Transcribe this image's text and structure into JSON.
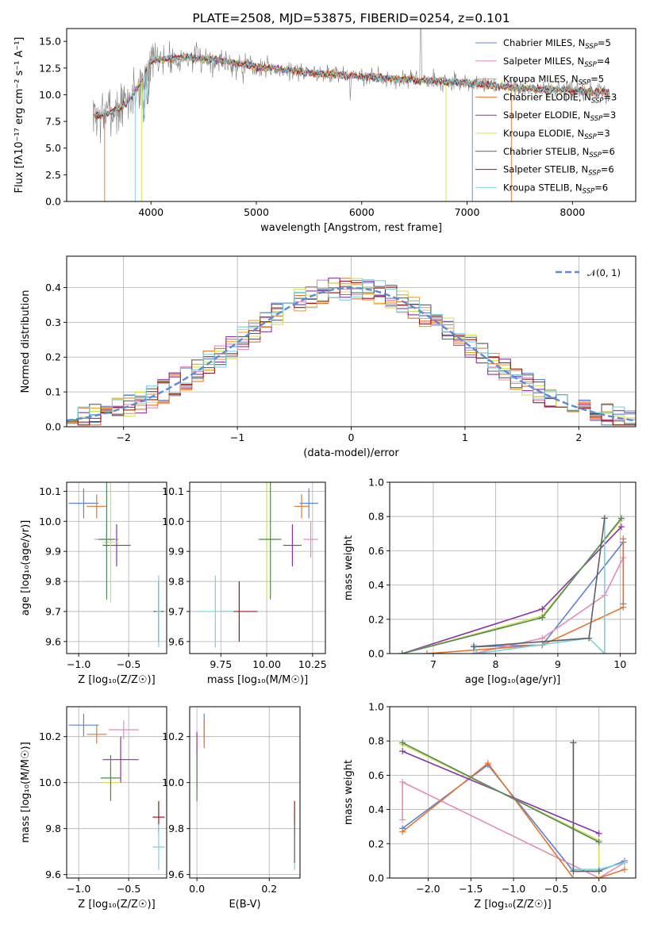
{
  "colors": {
    "chabrier_miles": "#5b84d4",
    "salpeter_miles": "#e88ab8",
    "kroupa_miles": "#f0a020",
    "chabrier_elodie": "#e8742c",
    "salpeter_elodie": "#8a32a8",
    "kroupa_elodie": "#d6e04a",
    "chabrier_stelib": "#606060",
    "salpeter_stelib": "#a01818",
    "kroupa_stelib": "#78d2de",
    "model_green": "#4e8a5c"
  },
  "chart_data": [
    {
      "type": "line",
      "title": "PLATE=2508, MJD=53875, FIBERID=0254, z=0.101",
      "xlabel": "wavelength [Angstrom, rest frame]",
      "ylabel": "Flux [fλ10⁻¹⁷ erg cm⁻² s⁻¹ A⁻¹]",
      "xlim": [
        3200,
        8600
      ],
      "ylim": [
        0,
        16.2
      ],
      "xticks": [
        "4000",
        "5000",
        "6000",
        "7000",
        "8000"
      ],
      "yticks": [
        "0.0",
        "2.5",
        "5.0",
        "7.5",
        "10.0",
        "12.5",
        "15.0"
      ],
      "grid": false,
      "legend_position": "top-right",
      "continuum": {
        "x": [
          3500,
          3600,
          3700,
          3800,
          3900,
          4000,
          4100,
          4300,
          4600,
          5000,
          5500,
          6000,
          6500,
          7000,
          7500,
          8000,
          8350
        ],
        "y": [
          8.0,
          8.3,
          8.7,
          9.6,
          11.0,
          13.2,
          13.3,
          13.5,
          13.3,
          12.6,
          12.1,
          11.7,
          11.4,
          11.1,
          10.6,
          10.4,
          10.2
        ]
      },
      "series": [
        {
          "name": "Chabrier MILES, N_SSP=5",
          "legend_label": "Chabrier MILES, N",
          "nssp": "=5",
          "color_key": "chabrier_miles"
        },
        {
          "name": "Salpeter MILES, N_SSP=4",
          "legend_label": "Salpeter MILES, N",
          "nssp": "=4",
          "color_key": "salpeter_miles"
        },
        {
          "name": "Kroupa MILES, N_SSP=5",
          "legend_label": "Kroupa MILES, N",
          "nssp": "=5",
          "color_key": "kroupa_miles"
        },
        {
          "name": "Chabrier ELODIE, N_SSP=3",
          "legend_label": "Chabrier ELODIE, N",
          "nssp": "=3",
          "color_key": "chabrier_elodie"
        },
        {
          "name": "Salpeter ELODIE, N_SSP=3",
          "legend_label": "Salpeter ELODIE, N",
          "nssp": "=3",
          "color_key": "salpeter_elodie"
        },
        {
          "name": "Kroupa ELODIE, N_SSP=3",
          "legend_label": "Kroupa ELODIE, N",
          "nssp": "=3",
          "color_key": "kroupa_elodie"
        },
        {
          "name": "Chabrier STELIB, N_SSP=6",
          "legend_label": "Chabrier STELIB, N",
          "nssp": "=6",
          "color_key": "chabrier_stelib"
        },
        {
          "name": "Salpeter STELIB, N_SSP=6",
          "legend_label": "Salpeter STELIB, N",
          "nssp": "=6",
          "color_key": "salpeter_stelib"
        },
        {
          "name": "Kroupa STELIB, N_SSP=6",
          "legend_label": "Kroupa STELIB, N",
          "nssp": "=6",
          "color_key": "kroupa_stelib"
        }
      ],
      "nssp_sub": "SSP"
    },
    {
      "type": "line",
      "title": "",
      "xlabel": "(data-model)/error",
      "ylabel": "Normed distribution",
      "xlim": [
        -2.5,
        2.5
      ],
      "ylim": [
        0,
        0.49
      ],
      "xticks": [
        "−2",
        "−1",
        "0",
        "1",
        "2"
      ],
      "yticks": [
        "0.0",
        "0.1",
        "0.2",
        "0.3",
        "0.4"
      ],
      "grid": true,
      "legend_position": "top-right",
      "gaussian_label": "𝒩(0, 1)",
      "bin_width": 0.1
    },
    {
      "type": "scatter",
      "xlabel": "Z [log₁₀(Z/Z☉)]",
      "ylabel": "age  [log₁₀(age/yr)]",
      "xlim": [
        -1.12,
        -0.12
      ],
      "ylim": [
        9.56,
        10.13
      ],
      "xticks": [
        "−1.0",
        "−0.5"
      ],
      "yticks": [
        "9.6",
        "9.7",
        "9.8",
        "9.9",
        "10.0",
        "10.1"
      ],
      "grid": true,
      "points": [
        {
          "x": -0.95,
          "y": 10.06,
          "xerr": 0.15,
          "yerr": 0.05,
          "color_key": "chabrier_miles"
        },
        {
          "x": -0.72,
          "y": 9.94,
          "xerr": 0.12,
          "yerr": 0.06,
          "color_key": "salpeter_miles"
        },
        {
          "x": -0.82,
          "y": 10.05,
          "xerr": 0.1,
          "yerr": 0.04,
          "color_key": "chabrier_elodie"
        },
        {
          "x": -0.62,
          "y": 9.92,
          "xerr": 0.14,
          "yerr": 0.07,
          "color_key": "salpeter_elodie"
        },
        {
          "x": -0.68,
          "y": 9.93,
          "xerr": 0.08,
          "yerr": 0.2,
          "color_key": "kroupa_elodie"
        },
        {
          "x": -0.72,
          "y": 9.94,
          "xerr": 0.08,
          "yerr": 0.2,
          "color_key": "model_green"
        },
        {
          "x": -0.2,
          "y": 9.7,
          "xerr": 0.05,
          "yerr": 0.1,
          "color_key": "salpeter_stelib"
        },
        {
          "x": -0.2,
          "y": 9.7,
          "xerr": 0.05,
          "yerr": 0.1,
          "color_key": "chabrier_stelib"
        },
        {
          "x": -0.2,
          "y": 9.7,
          "xerr": 0.03,
          "yerr": 0.12,
          "color_key": "kroupa_stelib"
        }
      ]
    },
    {
      "type": "scatter",
      "xlabel": "mass [log₁₀(M/M☉)]",
      "ylabel": "",
      "xlim": [
        9.58,
        10.32
      ],
      "ylim": [
        9.56,
        10.13
      ],
      "xticks": [
        "9.75",
        "10.00",
        "10.25"
      ],
      "yticks": [
        "9.6",
        "9.7",
        "9.8",
        "9.9",
        "10.0",
        "10.1"
      ],
      "grid": true,
      "points": [
        {
          "x": 10.23,
          "y": 10.06,
          "xerr": 0.05,
          "yerr": 0.05,
          "color_key": "chabrier_miles"
        },
        {
          "x": 10.24,
          "y": 9.94,
          "xerr": 0.04,
          "yerr": 0.06,
          "color_key": "salpeter_miles"
        },
        {
          "x": 10.19,
          "y": 10.05,
          "xerr": 0.04,
          "yerr": 0.04,
          "color_key": "chabrier_elodie"
        },
        {
          "x": 10.14,
          "y": 9.92,
          "xerr": 0.05,
          "yerr": 0.07,
          "color_key": "salpeter_elodie"
        },
        {
          "x": 10.0,
          "y": 9.94,
          "xerr": 0.05,
          "yerr": 0.2,
          "color_key": "kroupa_elodie"
        },
        {
          "x": 10.02,
          "y": 9.94,
          "xerr": 0.06,
          "yerr": 0.2,
          "color_key": "model_green"
        },
        {
          "x": 9.85,
          "y": 9.7,
          "xerr": 0.1,
          "yerr": 0.1,
          "color_key": "salpeter_stelib"
        },
        {
          "x": 9.72,
          "y": 9.7,
          "xerr": 0.1,
          "yerr": 0.12,
          "color_key": "kroupa_stelib"
        }
      ]
    },
    {
      "type": "line",
      "xlabel": "age  [log₁₀(age/yr)]",
      "ylabel": "mass weight",
      "xlim": [
        6.3,
        10.25
      ],
      "ylim": [
        0,
        1.0
      ],
      "xticks": [
        "7",
        "8",
        "9",
        "10"
      ],
      "yticks": [
        "0.0",
        "0.2",
        "0.4",
        "0.6",
        "0.8",
        "1.0"
      ],
      "grid": true,
      "series": [
        {
          "color_key": "chabrier_miles",
          "x": [
            7.65,
            8.75,
            10.05,
            10.05
          ],
          "y": [
            0.04,
            0.05,
            0.65,
            0.29
          ]
        },
        {
          "color_key": "salpeter_miles",
          "x": [
            7.65,
            8.75,
            9.75,
            10.05
          ],
          "y": [
            0.0,
            0.09,
            0.34,
            0.56
          ]
        },
        {
          "color_key": "chabrier_elodie",
          "x": [
            6.9,
            8.75,
            10.05,
            10.05
          ],
          "y": [
            0.0,
            0.05,
            0.27,
            0.67
          ]
        },
        {
          "color_key": "salpeter_elodie",
          "x": [
            6.5,
            8.75,
            10.02
          ],
          "y": [
            0.0,
            0.26,
            0.74
          ]
        },
        {
          "color_key": "kroupa_elodie",
          "x": [
            6.5,
            8.75,
            10.02
          ],
          "y": [
            0.0,
            0.22,
            0.78
          ]
        },
        {
          "color_key": "model_green",
          "x": [
            6.5,
            8.75,
            10.02
          ],
          "y": [
            0.0,
            0.21,
            0.79
          ]
        },
        {
          "color_key": "kroupa_stelib",
          "x": [
            7.65,
            7.7,
            9.5,
            9.75,
            9.75
          ],
          "y": [
            0.05,
            0.0,
            0.09,
            0.0,
            0.79
          ]
        },
        {
          "color_key": "chabrier_stelib",
          "x": [
            7.65,
            9.5,
            9.75
          ],
          "y": [
            0.04,
            0.09,
            0.79
          ]
        }
      ]
    },
    {
      "type": "scatter",
      "xlabel": "Z [log₁₀(Z/Z☉)]",
      "ylabel": "mass [log₁₀(M/M☉)]",
      "xlim": [
        -1.12,
        -0.12
      ],
      "ylim": [
        9.585,
        10.33
      ],
      "xticks": [
        "−1.0",
        "−0.5"
      ],
      "yticks": [
        "9.6",
        "9.8",
        "10.0",
        "10.2"
      ],
      "grid": true,
      "points": [
        {
          "x": -0.95,
          "y": 10.25,
          "xerr": 0.15,
          "yerr": 0.05,
          "color_key": "chabrier_miles"
        },
        {
          "x": -0.55,
          "y": 10.23,
          "xerr": 0.15,
          "yerr": 0.04,
          "color_key": "salpeter_miles"
        },
        {
          "x": -0.82,
          "y": 10.21,
          "xerr": 0.1,
          "yerr": 0.04,
          "color_key": "chabrier_elodie"
        },
        {
          "x": -0.58,
          "y": 10.1,
          "xerr": 0.18,
          "yerr": 0.1,
          "color_key": "salpeter_elodie"
        },
        {
          "x": -0.68,
          "y": 10.0,
          "xerr": 0.1,
          "yerr": 0.08,
          "color_key": "kroupa_elodie"
        },
        {
          "x": -0.68,
          "y": 10.02,
          "xerr": 0.1,
          "yerr": 0.1,
          "color_key": "model_green"
        },
        {
          "x": -0.2,
          "y": 9.85,
          "xerr": 0.06,
          "yerr": 0.07,
          "color_key": "salpeter_stelib"
        },
        {
          "x": -0.2,
          "y": 9.72,
          "xerr": 0.06,
          "yerr": 0.1,
          "color_key": "kroupa_stelib"
        }
      ]
    },
    {
      "type": "scatter",
      "xlabel": "E(B-V)",
      "ylabel": "",
      "xlim": [
        -0.02,
        0.285
      ],
      "ylim": [
        9.585,
        10.33
      ],
      "xticks": [
        "0.0",
        "0.2"
      ],
      "yticks": [
        "9.6",
        "9.8",
        "10.0",
        "10.2"
      ],
      "grid": true,
      "points": [
        {
          "x": 0.02,
          "y": 10.25,
          "xerr": 0,
          "yerr": 0.05,
          "color_key": "chabrier_miles"
        },
        {
          "x": 0.02,
          "y": 10.22,
          "xerr": 0,
          "yerr": 0.05,
          "color_key": "salpeter_miles"
        },
        {
          "x": 0.02,
          "y": 10.21,
          "xerr": 0,
          "yerr": 0.06,
          "color_key": "chabrier_elodie"
        },
        {
          "x": 0.0,
          "y": 10.1,
          "xerr": 0,
          "yerr": 0.12,
          "color_key": "salpeter_elodie"
        },
        {
          "x": 0.0,
          "y": 10.0,
          "xerr": 0,
          "yerr": 0.08,
          "color_key": "kroupa_elodie"
        },
        {
          "x": 0.0,
          "y": 10.02,
          "xerr": 0,
          "yerr": 0.1,
          "color_key": "model_green"
        },
        {
          "x": 0.27,
          "y": 9.85,
          "xerr": 0,
          "yerr": 0.07,
          "color_key": "salpeter_stelib"
        },
        {
          "x": 0.27,
          "y": 9.72,
          "xerr": 0,
          "yerr": 0.1,
          "color_key": "kroupa_stelib"
        },
        {
          "x": 0.27,
          "y": 9.74,
          "xerr": 0,
          "yerr": 0.09,
          "color_key": "chabrier_stelib"
        }
      ]
    },
    {
      "type": "line",
      "xlabel": "Z [log₁₀(Z/Z☉)]",
      "ylabel": "mass weight",
      "xlim": [
        -2.45,
        0.43
      ],
      "ylim": [
        0,
        1.0
      ],
      "xticks": [
        "−2.0",
        "−1.5",
        "−1.0",
        "−0.5",
        "0.0"
      ],
      "yticks": [
        "0.0",
        "0.2",
        "0.4",
        "0.6",
        "0.8",
        "1.0"
      ],
      "grid": true,
      "series": [
        {
          "color_key": "chabrier_miles",
          "x": [
            -2.3,
            -1.3,
            -0.3,
            0.0,
            0.3
          ],
          "y": [
            0.29,
            0.66,
            0.04,
            0.04,
            0.1
          ]
        },
        {
          "color_key": "salpeter_miles",
          "x": [
            -2.3,
            -2.3,
            0.0,
            0.3
          ],
          "y": [
            0.34,
            0.56,
            0.0,
            0.09
          ]
        },
        {
          "color_key": "chabrier_elodie",
          "x": [
            -2.3,
            -1.3,
            -0.3,
            0.0,
            0.3
          ],
          "y": [
            0.27,
            0.67,
            0.0,
            0.0,
            0.05
          ]
        },
        {
          "color_key": "salpeter_elodie",
          "x": [
            -2.3,
            0.0
          ],
          "y": [
            0.74,
            0.26
          ]
        },
        {
          "color_key": "kroupa_elodie",
          "x": [
            -2.3,
            0.0,
            0.0
          ],
          "y": [
            0.78,
            0.22,
            0.0
          ]
        },
        {
          "color_key": "model_green",
          "x": [
            -2.3,
            0.0
          ],
          "y": [
            0.79,
            0.21
          ]
        },
        {
          "color_key": "kroupa_stelib",
          "x": [
            -0.3,
            -0.3,
            -0.3,
            0.0,
            0.3
          ],
          "y": [
            0.0,
            0.79,
            0.05,
            0.05,
            0.09
          ]
        },
        {
          "color_key": "chabrier_stelib",
          "x": [
            -0.3,
            -0.3,
            0.0
          ],
          "y": [
            0.79,
            0.04,
            0.04
          ]
        }
      ]
    }
  ]
}
